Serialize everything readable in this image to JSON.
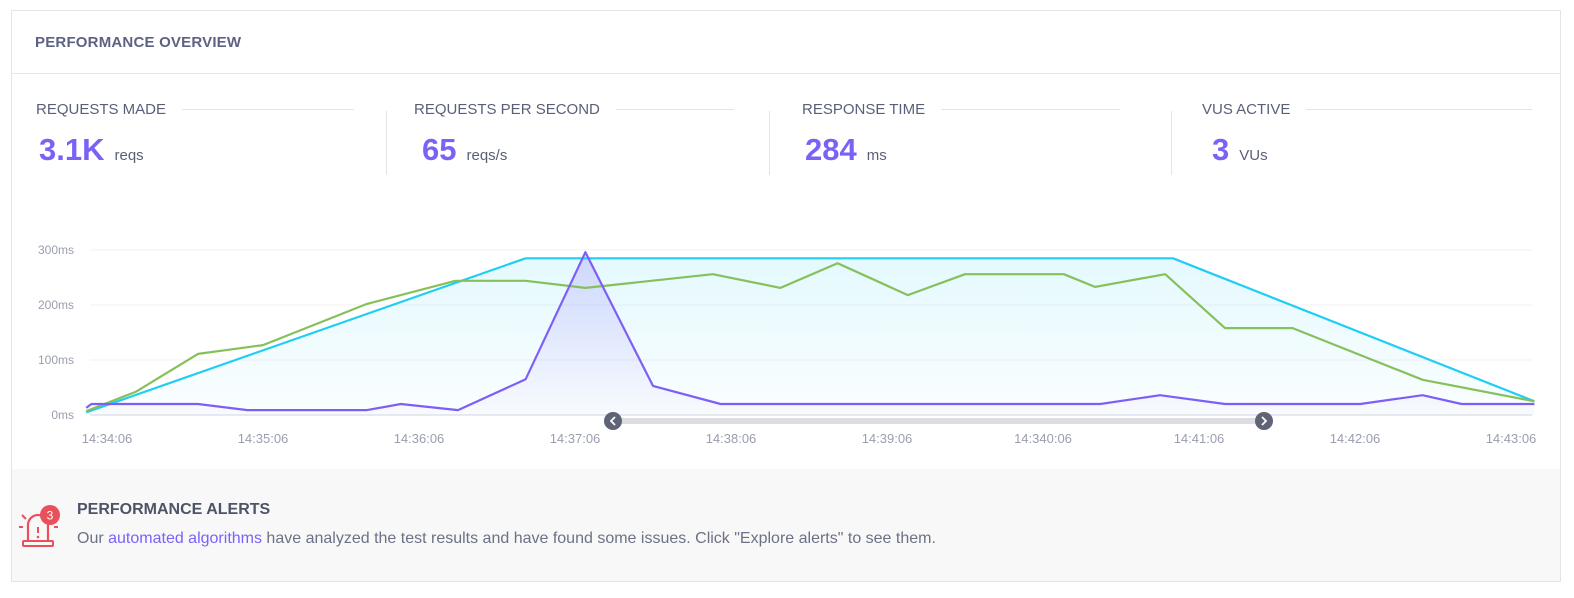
{
  "header": {
    "title": "PERFORMANCE OVERVIEW"
  },
  "stats": [
    {
      "label": "REQUESTS MADE",
      "value": "3.1K",
      "unit": "reqs"
    },
    {
      "label": "REQUESTS PER SECOND",
      "value": "65",
      "unit": "reqs/s"
    },
    {
      "label": "RESPONSE TIME",
      "value": "284",
      "unit": "ms"
    },
    {
      "label": "VUS ACTIVE",
      "value": "3",
      "unit": "VUs"
    }
  ],
  "chart_data": {
    "type": "line",
    "ylim": [
      0,
      300
    ],
    "y_ticks": [
      "0ms",
      "100ms",
      "200ms",
      "300ms"
    ],
    "y_tick_values": [
      0,
      100,
      200,
      300
    ],
    "x_ticks": [
      "14:34:06",
      "14:35:06",
      "14:36:06",
      "14:37:06",
      "14:38:06",
      "14:39:06",
      "14:340:06",
      "14:41:06",
      "14:42:06",
      "14:43:06"
    ],
    "grid": true,
    "colors": {
      "cyan": "#1fcdf5",
      "green": "#86c05a",
      "purple": "#7d5ff7"
    },
    "series": [
      {
        "color": "#1fcdf5",
        "x": [
          "14:33:58",
          "14:36:47",
          "14:40:56",
          "14:43:15"
        ],
        "values": [
          5,
          285,
          285,
          25
        ]
      },
      {
        "color": "#86c05a",
        "x": [
          "14:33:58",
          "14:34:17",
          "14:34:41",
          "14:35:06",
          "14:35:46",
          "14:36:20",
          "14:36:47",
          "14:37:10",
          "14:37:59",
          "14:38:25",
          "14:38:47",
          "14:39:14",
          "14:39:36",
          "14:40:14",
          "14:40:26",
          "14:40:53",
          "14:41:16",
          "14:41:42",
          "14:42:32",
          "14:43:15"
        ],
        "values": [
          7,
          42,
          111,
          127,
          202,
          244,
          244,
          231,
          256,
          231,
          276,
          218,
          256,
          256,
          233,
          256,
          158,
          158,
          64,
          25
        ]
      },
      {
        "color": "#7d5ff7",
        "x": [
          "14:33:58",
          "14:34:00",
          "14:34:41",
          "14:35:00",
          "14:35:46",
          "14:35:59",
          "14:36:21",
          "14:36:47",
          "14:37:10",
          "14:37:36",
          "14:38:02",
          "14:40:28",
          "14:40:51",
          "14:41:16",
          "14:42:08",
          "14:42:32",
          "14:42:47",
          "14:43:15"
        ],
        "values": [
          13,
          20,
          20,
          9,
          9,
          20,
          9,
          65,
          296,
          53,
          20,
          20,
          36,
          20,
          20,
          36,
          20,
          20
        ]
      }
    ]
  },
  "alerts": {
    "title": "PERFORMANCE ALERTS",
    "count": "3",
    "text_before": "Our ",
    "link": "automated algorithms",
    "text_after": " have analyzed the test results and have found some issues. Click \"Explore alerts\" to see them."
  }
}
